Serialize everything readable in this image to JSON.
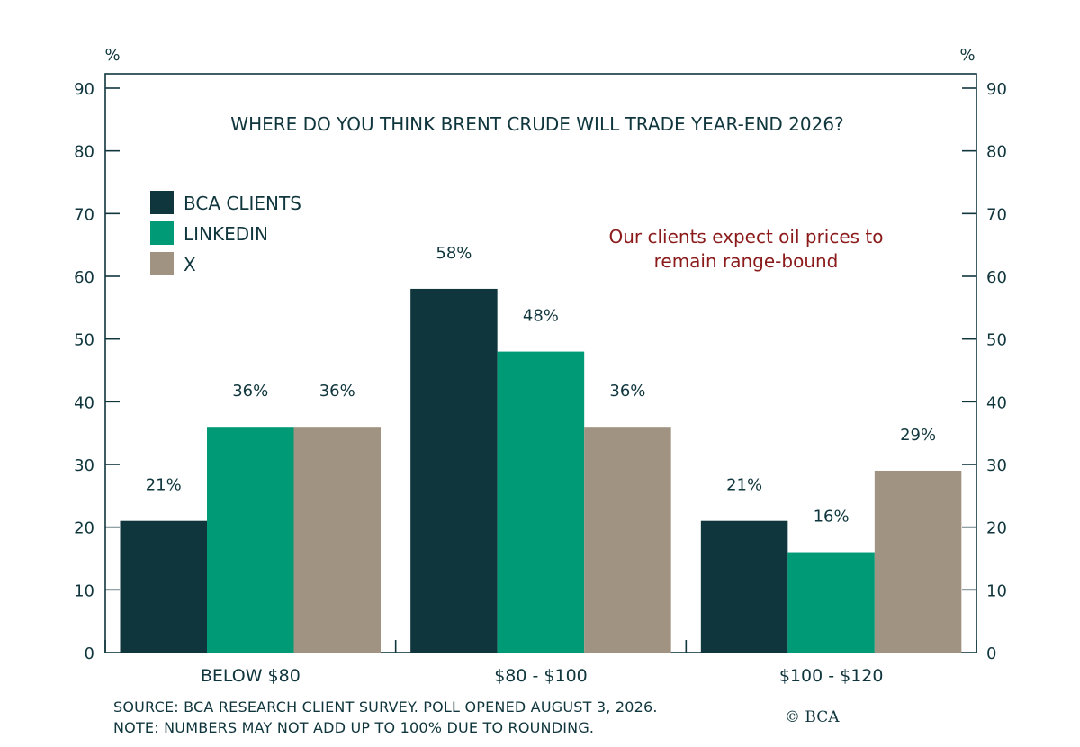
{
  "chart_data": {
    "type": "bar",
    "title": "WHERE DO YOU THINK BRENT CRUDE WILL TRADE YEAR-END 2026?",
    "categories": [
      "BELOW $80",
      "$80 - $100",
      "$100 - $120"
    ],
    "series": [
      {
        "name": "BCA CLIENTS",
        "values": [
          21,
          58,
          21
        ],
        "labels": [
          "21%",
          "58%",
          "21%"
        ],
        "color": "#10363d"
      },
      {
        "name": "LINKEDIN",
        "values": [
          36,
          48,
          16
        ],
        "labels": [
          "36%",
          "48%",
          "16%"
        ],
        "color": "#019a77"
      },
      {
        "name": "X",
        "values": [
          36,
          36,
          29
        ],
        "labels": [
          "36%",
          "36%",
          "29%"
        ],
        "color": "#a09382"
      }
    ],
    "ylabel_left": "%",
    "ylabel_right": "%",
    "ylim": [
      0,
      90
    ],
    "yticks": [
      0,
      10,
      20,
      30,
      40,
      50,
      60,
      70,
      80,
      90
    ],
    "ytick_labels": [
      "0",
      "10",
      "20",
      "30",
      "40",
      "50",
      "60",
      "70",
      "80",
      "90"
    ],
    "legend_position": "top-left",
    "grid": false,
    "annotation": {
      "lines": [
        "Our clients expect oil prices to",
        "remain range-bound"
      ],
      "color": "#8b1a1a"
    }
  },
  "footer": {
    "source": "SOURCE: BCA RESEARCH CLIENT SURVEY. POLL OPENED AUGUST 3, 2026.",
    "note": "NOTE: NUMBERS MAY NOT ADD UP TO 100% DUE TO ROUNDING.",
    "copyright": "© BCA"
  }
}
